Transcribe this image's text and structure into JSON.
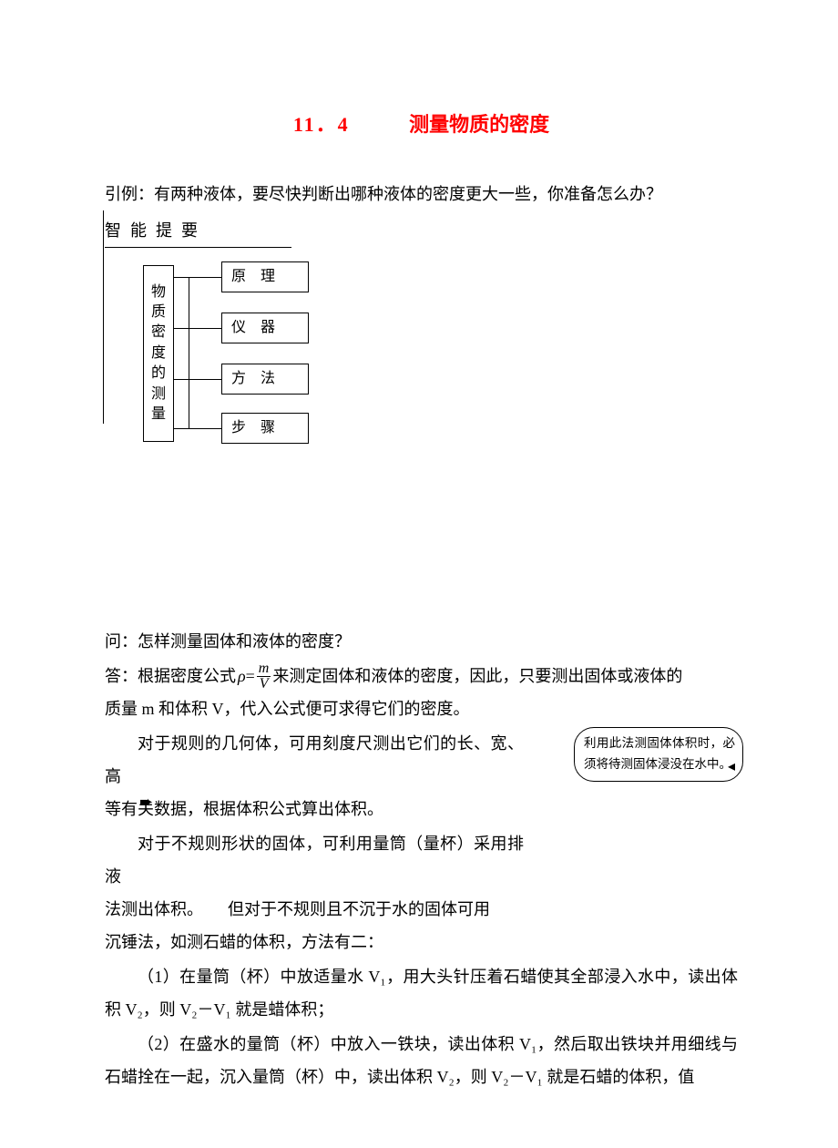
{
  "title": {
    "number": "11．4",
    "text": "测量物质的密度",
    "color": "#ff0000"
  },
  "intro": "引例：有两种液体，要尽快判断出哪种液体的密度更大一些，你准备怎么办？",
  "section_label": "智能提要",
  "tree": {
    "root": "物质密度的测量",
    "leaves": [
      "原　理",
      "仪　器",
      "方　法",
      "步　骤"
    ]
  },
  "qa": {
    "question": "问：怎样测量固体和液体的密度？",
    "answer_prefix": "答：根据密度公式",
    "rho": "ρ",
    "eq": "=",
    "frac_num": "m",
    "frac_den": "V",
    "answer_mid": "来测定固体和液体的密度，因此，只要测出固体或液体的",
    "answer_tail": "质量 m 和体积 V，代入公式便可求得它们的密度。"
  },
  "para_regular_1": "对于规则的几何体，可用刻度尺测出它们的长、宽、高",
  "para_regular_2": "等有关数据，根据体积公式算出体积。",
  "para_irregular_1": "对于不规则形状的固体，可利用量筒（量杯）采用排液",
  "para_irregular_2": "法测出体积。　　但对于不规则且不沉于水的固体可用",
  "para_irregular_3": "沉锤法，如测石蜡的体积，方法有二：",
  "method1": "（1）在量筒（杯）中放适量水 V₁，用大头针压着石蜡使其全部浸入水中，读出体积 V₂，则 V₂－V₁ 就是蜡体积；",
  "method2": "（2）在盛水的量筒（杯）中放入一铁块，读出体积 V₁，然后取出铁块并用细线与石蜡拴在一起，沉入量筒（杯）中，读出体积 V₂，则 V₂－V₁ 就是石蜡的体积，值",
  "callout": "利用此法测固体体积时，必须将待测固体浸没在水中。",
  "callout_arrow": "◂",
  "side_arrow": "➨"
}
